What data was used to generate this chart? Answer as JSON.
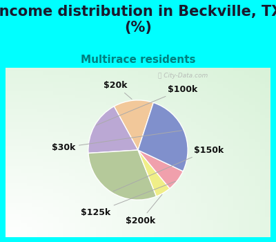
{
  "title": "Income distribution in Beckville, TX\n(%)",
  "subtitle": "Multirace residents",
  "labels": [
    "$20k",
    "$100k",
    "$150k",
    "$200k",
    "$125k",
    "$30k"
  ],
  "sizes": [
    13,
    18,
    30,
    5,
    7,
    27
  ],
  "colors": [
    "#F2C89A",
    "#BBA8D4",
    "#B5C99A",
    "#F0EE88",
    "#F0A0AC",
    "#8090CC"
  ],
  "title_fontsize": 15,
  "subtitle_fontsize": 11,
  "label_fontsize": 9,
  "bg_cyan": "#00FFFF",
  "startangle": 72,
  "watermark": "ⓘ City-Data.com"
}
